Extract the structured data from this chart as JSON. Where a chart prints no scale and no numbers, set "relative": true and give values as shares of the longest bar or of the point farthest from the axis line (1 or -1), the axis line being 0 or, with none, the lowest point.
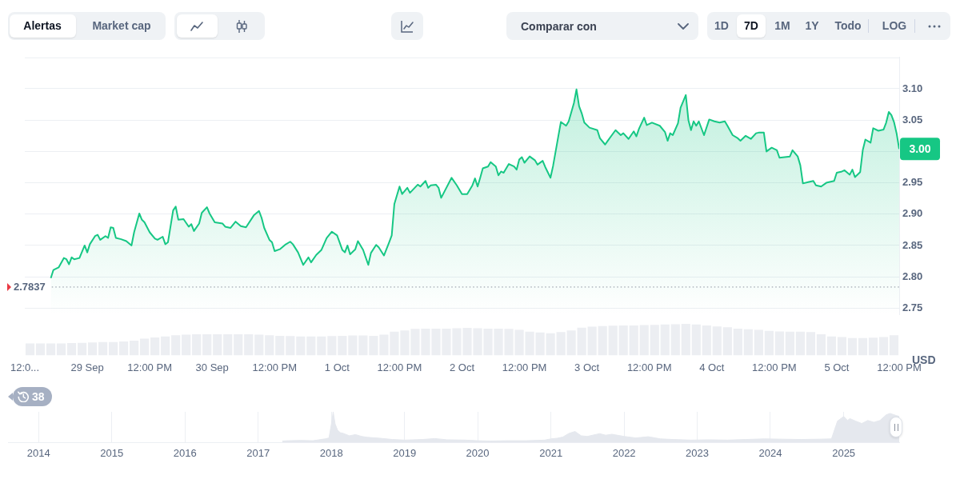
{
  "chart_data": [
    {
      "type": "other",
      "annotations": [
        "Alertas",
        "Market cap",
        "Comparar con",
        "1D",
        "7D",
        "1M",
        "1Y",
        "Todo",
        "LOG"
      ]
    },
    {
      "type": "area",
      "color": "#16c784",
      "x": [
        "2025-09-28T17:00",
        "2025-09-28T17:30",
        "2025-09-28T18:30",
        "2025-09-28T19:30",
        "2025-09-28T20:00",
        "2025-09-28T20:30",
        "2025-09-28T21:00",
        "2025-09-28T21:30",
        "2025-09-28T22:30",
        "2025-09-28T23:30",
        "2025-09-29T00:00",
        "2025-09-29T00:30",
        "2025-09-29T01:30",
        "2025-09-29T02:00",
        "2025-09-29T02:30",
        "2025-09-29T03:30",
        "2025-09-29T04:00",
        "2025-09-29T04:30",
        "2025-09-29T05:00",
        "2025-09-29T05:30",
        "2025-09-29T06:30",
        "2025-09-29T07:30",
        "2025-09-29T08:30",
        "2025-09-29T09:00",
        "2025-09-29T10:00",
        "2025-09-29T10:30",
        "2025-09-29T11:00",
        "2025-09-29T12:00",
        "2025-09-29T13:00",
        "2025-09-29T13:30",
        "2025-09-29T14:30",
        "2025-09-29T15:00",
        "2025-09-29T15:30",
        "2025-09-29T16:30",
        "2025-09-29T17:00",
        "2025-09-29T17:30",
        "2025-09-29T18:30",
        "2025-09-29T19:30",
        "2025-09-29T20:00",
        "2025-09-29T20:30",
        "2025-09-29T21:30",
        "2025-09-29T22:00",
        "2025-09-29T23:00",
        "2025-09-29T23:30",
        "2025-09-30T00:30",
        "2025-09-30T02:00",
        "2025-09-30T02:30",
        "2025-09-30T03:30",
        "2025-09-30T04:30",
        "2025-09-30T05:30",
        "2025-09-30T06:30",
        "2025-09-30T08:00",
        "2025-09-30T09:00",
        "2025-09-30T09:30",
        "2025-09-30T10:00",
        "2025-09-30T11:00",
        "2025-09-30T11:30",
        "2025-09-30T12:00",
        "2025-09-30T13:00",
        "2025-09-30T14:00",
        "2025-09-30T15:00",
        "2025-09-30T15:30",
        "2025-09-30T16:30",
        "2025-09-30T17:30",
        "2025-09-30T18:30",
        "2025-09-30T19:00",
        "2025-09-30T20:00",
        "2025-09-30T21:00",
        "2025-09-30T22:00",
        "2025-09-30T23:00",
        "2025-10-01T00:00",
        "2025-10-01T01:00",
        "2025-10-01T01:30",
        "2025-10-01T02:00",
        "2025-10-01T02:30",
        "2025-10-01T03:30",
        "2025-10-01T04:00",
        "2025-10-01T05:00",
        "2025-10-01T06:00",
        "2025-10-01T06:30",
        "2025-10-01T07:30",
        "2025-10-01T08:00",
        "2025-10-01T09:00",
        "2025-10-01T10:00",
        "2025-10-01T10:30",
        "2025-10-01T11:00",
        "2025-10-01T12:00",
        "2025-10-01T12:30",
        "2025-10-01T13:30",
        "2025-10-01T14:00",
        "2025-10-01T15:30",
        "2025-10-01T16:00",
        "2025-10-01T17:00",
        "2025-10-01T17:30",
        "2025-10-01T18:00",
        "2025-10-01T19:00",
        "2025-10-01T19:30",
        "2025-10-01T20:00",
        "2025-10-01T20:30",
        "2025-10-01T22:00",
        "2025-10-01T23:00",
        "2025-10-02T00:00",
        "2025-10-02T01:00",
        "2025-10-02T02:00",
        "2025-10-02T02:30",
        "2025-10-02T03:00",
        "2025-10-02T03:30",
        "2025-10-02T04:00",
        "2025-10-02T05:00",
        "2025-10-02T05:30",
        "2025-10-02T06:30",
        "2025-10-02T07:00",
        "2025-10-02T07:30",
        "2025-10-02T08:00",
        "2025-10-02T09:00",
        "2025-10-02T10:00",
        "2025-10-02T10:30",
        "2025-10-02T11:00",
        "2025-10-02T11:30",
        "2025-10-02T12:00",
        "2025-10-02T13:00",
        "2025-10-02T14:00",
        "2025-10-02T14:30",
        "2025-10-02T15:30",
        "2025-10-02T16:00",
        "2025-10-02T17:00",
        "2025-10-02T17:30",
        "2025-10-02T18:30",
        "2025-10-02T19:00",
        "2025-10-02T20:00",
        "2025-10-02T20:30",
        "2025-10-02T21:30",
        "2025-10-02T22:00",
        "2025-10-02T22:30",
        "2025-10-02T23:00",
        "2025-10-02T23:30",
        "2025-10-03T00:30",
        "2025-10-03T02:00",
        "2025-10-03T02:30",
        "2025-10-03T03:30",
        "2025-10-03T04:00",
        "2025-10-03T05:30",
        "2025-10-03T06:30",
        "2025-10-03T07:00",
        "2025-10-03T08:00",
        "2025-10-03T09:00",
        "2025-10-03T09:30",
        "2025-10-03T10:00",
        "2025-10-03T11:00",
        "2025-10-03T11:30",
        "2025-10-03T12:30",
        "2025-10-03T14:00",
        "2025-10-03T15:00",
        "2025-10-03T15:30",
        "2025-10-03T16:00",
        "2025-10-03T16:30",
        "2025-10-03T17:30",
        "2025-10-03T18:00",
        "2025-10-03T19:00",
        "2025-10-03T19:30",
        "2025-10-03T20:00",
        "2025-10-03T20:30",
        "2025-10-03T21:00",
        "2025-10-03T21:30",
        "2025-10-03T22:30",
        "2025-10-03T23:30",
        "2025-10-04T00:30",
        "2025-10-04T01:30",
        "2025-10-04T02:30",
        "2025-10-04T03:00",
        "2025-10-04T04:00",
        "2025-10-04T05:00",
        "2025-10-04T05:30",
        "2025-10-04T06:30",
        "2025-10-04T07:30",
        "2025-10-04T08:30",
        "2025-10-04T09:00",
        "2025-10-04T10:00",
        "2025-10-04T10:30",
        "2025-10-04T11:30",
        "2025-10-04T12:30",
        "2025-10-04T13:00",
        "2025-10-04T14:00",
        "2025-10-04T15:00",
        "2025-10-04T15:30",
        "2025-10-04T16:30",
        "2025-10-04T17:00",
        "2025-10-04T17:30",
        "2025-10-04T18:30",
        "2025-10-04T19:30",
        "2025-10-04T20:00",
        "2025-10-04T21:00",
        "2025-10-04T22:00",
        "2025-10-04T22:30",
        "2025-10-04T23:30",
        "2025-10-05T00:00",
        "2025-10-05T01:00",
        "2025-10-05T01:30",
        "2025-10-05T02:30",
        "2025-10-05T03:00",
        "2025-10-05T03:30",
        "2025-10-05T04:30",
        "2025-10-05T05:00",
        "2025-10-05T05:30",
        "2025-10-05T06:30",
        "2025-10-05T07:00",
        "2025-10-05T08:00",
        "2025-10-05T09:00",
        "2025-10-05T09:30",
        "2025-10-05T10:00",
        "2025-10-05T10:30",
        "2025-10-05T11:00",
        "2025-10-05T11:30",
        "2025-10-05T12:00"
      ],
      "values": [
        2.798,
        2.811,
        2.815,
        2.83,
        2.828,
        2.82,
        2.831,
        2.828,
        2.83,
        2.85,
        2.839,
        2.852,
        2.865,
        2.867,
        2.859,
        2.865,
        2.862,
        2.879,
        2.878,
        2.862,
        2.86,
        2.857,
        2.85,
        2.871,
        2.901,
        2.891,
        2.887,
        2.871,
        2.861,
        2.859,
        2.864,
        2.852,
        2.855,
        2.906,
        2.912,
        2.891,
        2.892,
        2.88,
        2.884,
        2.873,
        2.885,
        2.902,
        2.911,
        2.901,
        2.887,
        2.885,
        2.88,
        2.878,
        2.888,
        2.881,
        2.879,
        2.898,
        2.905,
        2.894,
        2.878,
        2.859,
        2.855,
        2.841,
        2.844,
        2.851,
        2.856,
        2.852,
        2.839,
        2.819,
        2.831,
        2.823,
        2.835,
        2.843,
        2.862,
        2.872,
        2.866,
        2.843,
        2.839,
        2.85,
        2.836,
        2.844,
        2.857,
        2.843,
        2.819,
        2.838,
        2.851,
        2.847,
        2.834,
        2.855,
        2.866,
        2.916,
        2.944,
        2.932,
        2.942,
        2.934,
        2.947,
        2.944,
        2.953,
        2.942,
        2.946,
        2.947,
        2.942,
        2.926,
        2.934,
        2.958,
        2.946,
        2.932,
        2.932,
        2.946,
        2.957,
        2.944,
        2.958,
        2.973,
        2.976,
        2.983,
        2.976,
        2.962,
        2.968,
        2.966,
        2.98,
        2.976,
        2.971,
        2.987,
        2.991,
        2.982,
        2.992,
        2.986,
        2.979,
        2.985,
        2.975,
        2.958,
        2.977,
        3.024,
        3.047,
        3.041,
        3.048,
        3.077,
        3.099,
        3.072,
        3.061,
        3.046,
        3.038,
        3.034,
        3.021,
        3.011,
        3.017,
        3.034,
        3.026,
        3.029,
        3.02,
        3.032,
        3.024,
        3.036,
        3.054,
        3.042,
        3.046,
        3.041,
        3.031,
        3.017,
        3.029,
        3.026,
        3.045,
        3.07,
        3.09,
        3.05,
        3.034,
        3.048,
        3.041,
        3.048,
        3.026,
        3.051,
        3.048,
        3.046,
        3.048,
        3.041,
        3.026,
        3.021,
        3.017,
        3.025,
        3.02,
        3.029,
        3.03,
        3.03,
        3.0,
        3.006,
        3.002,
        2.99,
        2.991,
        2.992,
        3.002,
        2.992,
        2.978,
        2.949,
        2.951,
        2.953,
        2.946,
        2.944,
        2.95,
        2.951,
        2.953,
        2.966,
        2.968,
        2.97,
        2.963,
        2.971,
        2.959,
        2.967,
        3.002,
        3.019,
        3.014,
        3.037,
        3.033,
        3.035,
        3.046,
        3.063,
        3.058,
        3.047,
        3.029,
        3.004
      ],
      "xlim": [
        "2025-09-28T12:00",
        "2025-10-05T12:00"
      ],
      "ylim": [
        2.74,
        3.15
      ],
      "yticks": [
        2.75,
        {
          "value": 2.8,
          "label": "2.80"
        },
        2.85,
        {
          "value": 2.9,
          "label": "2.90"
        },
        2.95,
        {
          "value": 3,
          "label": null
        },
        3.05,
        {
          "value": 3.1,
          "label": "3.10"
        }
      ],
      "tick_labels": "y",
      "grid": "y",
      "ylabel": "USD",
      "ref_lines": [
        {
          "axis": "y",
          "value": 2.7837,
          "label": "2.7837",
          "line_style": "dotted",
          "color": "#8a919e"
        }
      ],
      "annotations": [
        "3.00",
        "38"
      ]
    },
    {
      "type": "bar",
      "relative": true,
      "color": "#eceef2",
      "x": [
        "2025-09-28T13:00",
        "2025-09-28T15:00",
        "2025-09-28T17:00",
        "2025-09-28T19:00",
        "2025-09-28T21:00",
        "2025-09-28T23:00",
        "2025-09-29T01:00",
        "2025-09-29T03:00",
        "2025-09-29T05:00",
        "2025-09-29T07:00",
        "2025-09-29T09:00",
        "2025-09-29T11:00",
        "2025-09-29T13:00",
        "2025-09-29T15:00",
        "2025-09-29T17:00",
        "2025-09-29T19:00",
        "2025-09-29T21:00",
        "2025-09-29T23:00",
        "2025-09-30T01:00",
        "2025-09-30T03:00",
        "2025-09-30T05:00",
        "2025-09-30T07:00",
        "2025-09-30T09:00",
        "2025-09-30T11:00",
        "2025-09-30T13:00",
        "2025-09-30T15:00",
        "2025-09-30T17:00",
        "2025-09-30T19:00",
        "2025-09-30T21:00",
        "2025-09-30T23:00",
        "2025-10-01T01:00",
        "2025-10-01T03:00",
        "2025-10-01T05:00",
        "2025-10-01T07:00",
        "2025-10-01T09:00",
        "2025-10-01T11:00",
        "2025-10-01T13:00",
        "2025-10-01T15:00",
        "2025-10-01T17:00",
        "2025-10-01T19:00",
        "2025-10-01T21:00",
        "2025-10-01T23:00",
        "2025-10-02T01:00",
        "2025-10-02T03:00",
        "2025-10-02T05:00",
        "2025-10-02T07:00",
        "2025-10-02T09:00",
        "2025-10-02T11:00",
        "2025-10-02T13:00",
        "2025-10-02T15:00",
        "2025-10-02T17:00",
        "2025-10-02T19:00",
        "2025-10-02T21:00",
        "2025-10-02T23:00",
        "2025-10-03T01:00",
        "2025-10-03T03:00",
        "2025-10-03T05:00",
        "2025-10-03T07:00",
        "2025-10-03T09:00",
        "2025-10-03T11:00",
        "2025-10-03T13:00",
        "2025-10-03T15:00",
        "2025-10-03T17:00",
        "2025-10-03T19:00",
        "2025-10-03T21:00",
        "2025-10-03T23:00",
        "2025-10-04T01:00",
        "2025-10-04T03:00",
        "2025-10-04T05:00",
        "2025-10-04T07:00",
        "2025-10-04T09:00",
        "2025-10-04T11:00",
        "2025-10-04T13:00",
        "2025-10-04T15:00",
        "2025-10-04T17:00",
        "2025-10-04T19:00",
        "2025-10-04T21:00",
        "2025-10-04T23:00",
        "2025-10-05T01:00",
        "2025-10-05T03:00",
        "2025-10-05T05:00",
        "2025-10-05T07:00",
        "2025-10-05T09:00",
        "2025-10-05T11:00"
      ],
      "values": [
        0.38,
        0.38,
        0.38,
        0.38,
        0.39,
        0.4,
        0.41,
        0.42,
        0.42,
        0.44,
        0.47,
        0.53,
        0.57,
        0.6,
        0.64,
        0.66,
        0.67,
        0.67,
        0.67,
        0.67,
        0.67,
        0.67,
        0.66,
        0.64,
        0.62,
        0.61,
        0.6,
        0.6,
        0.6,
        0.61,
        0.62,
        0.63,
        0.63,
        0.62,
        0.66,
        0.75,
        0.79,
        0.84,
        0.85,
        0.85,
        0.85,
        0.86,
        0.87,
        0.86,
        0.85,
        0.85,
        0.84,
        0.81,
        0.75,
        0.73,
        0.7,
        0.74,
        0.79,
        0.88,
        0.91,
        0.93,
        0.94,
        0.95,
        0.95,
        0.96,
        0.97,
        0.98,
        0.99,
        1,
        0.98,
        0.95,
        0.92,
        0.89,
        0.85,
        0.83,
        0.81,
        0.78,
        0.76,
        0.75,
        0.75,
        0.74,
        0.67,
        0.6,
        0.58,
        0.55,
        0.55,
        0.56,
        0.58,
        0.64
      ],
      "xlim": [
        "2025-09-28T12:00",
        "2025-10-05T12:00"
      ],
      "xticks": [
        {
          "value": "2025-09-28T12:00",
          "label": "12:0..."
        },
        {
          "value": "2025-09-29",
          "label": "29 Sep"
        },
        {
          "value": "2025-09-29T12:00",
          "label": "12:00 PM"
        },
        {
          "value": "2025-09-30",
          "label": "30 Sep"
        },
        {
          "value": "2025-09-30T12:00",
          "label": "12:00 PM"
        },
        {
          "value": "2025-10-01",
          "label": "1 Oct"
        },
        {
          "value": "2025-10-01T12:00",
          "label": "12:00 PM"
        },
        {
          "value": "2025-10-02",
          "label": "2 Oct"
        },
        {
          "value": "2025-10-02T12:00",
          "label": "12:00 PM"
        },
        {
          "value": "2025-10-03",
          "label": "3 Oct"
        },
        {
          "value": "2025-10-03T12:00",
          "label": "12:00 PM"
        },
        {
          "value": "2025-10-04",
          "label": "4 Oct"
        },
        {
          "value": "2025-10-04T12:00",
          "label": "12:00 PM"
        },
        {
          "value": "2025-10-05",
          "label": "5 Oct"
        },
        {
          "value": "2025-10-05T12:00",
          "label": "12:00 PM"
        }
      ]
    },
    {
      "type": "area",
      "relative": true,
      "color": "#e5e8ee",
      "x": [
        "2017-05",
        "2017-06",
        "2017-08",
        "2017-10",
        "2017-12",
        "2017-12-20",
        "2018-01-01",
        "2018-01-10",
        "2018-01-20",
        "2018-02",
        "2018-02-15",
        "2018-03",
        "2018-04",
        "2018-05",
        "2018-06",
        "2018-07",
        "2018-09",
        "2018-11",
        "2019-01",
        "2019-04",
        "2019-06",
        "2019-08",
        "2019-11",
        "2020-01",
        "2020-03",
        "2020-06",
        "2020-09",
        "2020-12",
        "2021-01",
        "2021-02",
        "2021-03",
        "2021-04",
        "2021-05",
        "2021-06",
        "2021-07",
        "2021-09",
        "2021-10",
        "2021-11",
        "2022-01",
        "2022-03",
        "2022-05",
        "2022-07",
        "2022-09",
        "2022-12",
        "2023-03",
        "2023-06",
        "2023-09",
        "2023-12",
        "2024-03",
        "2024-06",
        "2024-09",
        "2024-11",
        "2024-12",
        "2025-01",
        "2025-01-20",
        "2025-02",
        "2025-03",
        "2025-04",
        "2025-05",
        "2025-06",
        "2025-07",
        "2025-08",
        "2025-08-20",
        "2025-09-20",
        "2025-10-05"
      ],
      "values": [
        0.05,
        0.06,
        0.07,
        0.06,
        0.12,
        0.15,
        0.6,
        1,
        0.6,
        0.4,
        0.32,
        0.3,
        0.22,
        0.26,
        0.2,
        0.17,
        0.14,
        0.1,
        0.08,
        0.1,
        0.13,
        0.09,
        0.08,
        0.06,
        0.05,
        0.06,
        0.06,
        0.08,
        0.12,
        0.14,
        0.18,
        0.3,
        0.36,
        0.22,
        0.2,
        0.29,
        0.24,
        0.27,
        0.2,
        0.15,
        0.19,
        0.12,
        0.1,
        0.08,
        0.09,
        0.08,
        0.1,
        0.12,
        0.11,
        0.1,
        0.11,
        0.12,
        0.7,
        0.85,
        0.72,
        0.78,
        0.7,
        0.62,
        0.72,
        0.66,
        0.72,
        0.9,
        0.95,
        0.88,
        0.85
      ],
      "xlim": [
        "2013-08-01",
        "2025-10-05"
      ],
      "xticks": [
        "2014",
        "2015",
        "2016",
        "2017",
        "2018",
        "2019",
        "2020",
        "2021",
        "2022",
        "2023",
        "2024",
        "2025"
      ],
      "grid": "x"
    }
  ]
}
